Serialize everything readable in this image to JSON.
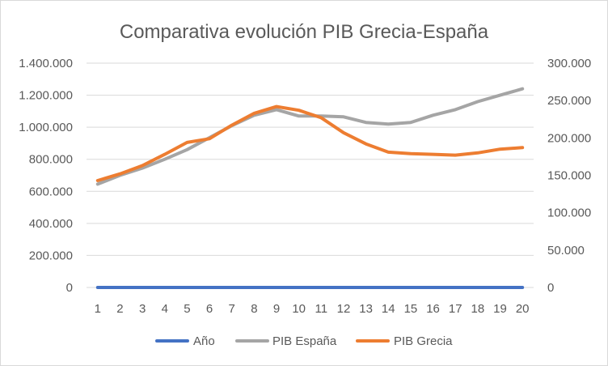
{
  "chart_data": {
    "type": "line",
    "title": "Comparativa evolución PIB Grecia-España",
    "xlabel": "",
    "ylabel": "",
    "categories": [
      "1",
      "2",
      "3",
      "4",
      "5",
      "6",
      "7",
      "8",
      "9",
      "10",
      "11",
      "12",
      "13",
      "14",
      "15",
      "16",
      "17",
      "18",
      "19",
      "20"
    ],
    "y_left": {
      "ylim": [
        0,
        1400000
      ],
      "ticks": [
        "0",
        "200.000",
        "400.000",
        "600.000",
        "800.000",
        "1.000.000",
        "1.200.000",
        "1.400.000"
      ],
      "tick_values": [
        0,
        200000,
        400000,
        600000,
        800000,
        1000000,
        1200000,
        1400000
      ]
    },
    "y_right": {
      "ylim": [
        0,
        300000
      ],
      "ticks": [
        "0",
        "50.000",
        "100.000",
        "150.000",
        "200.000",
        "250.000",
        "300.000"
      ],
      "tick_values": [
        0,
        50000,
        100000,
        150000,
        200000,
        250000,
        300000
      ]
    },
    "grid": true,
    "legend_position": "bottom",
    "series": [
      {
        "name": "Año",
        "axis": "left",
        "color": "#4472C4",
        "values": [
          1,
          2,
          3,
          4,
          5,
          6,
          7,
          8,
          9,
          10,
          11,
          12,
          13,
          14,
          15,
          16,
          17,
          18,
          19,
          20
        ]
      },
      {
        "name": "PIB España",
        "axis": "left",
        "color": "#A5A5A5",
        "values": [
          645000,
          700000,
          745000,
          800000,
          860000,
          935000,
          1010000,
          1075000,
          1110000,
          1070000,
          1070000,
          1065000,
          1030000,
          1020000,
          1030000,
          1075000,
          1110000,
          1160000,
          1200000,
          1240000
        ]
      },
      {
        "name": "PIB Grecia",
        "axis": "right",
        "color": "#ED7D31",
        "values": [
          143000,
          152000,
          163000,
          178000,
          194000,
          199000,
          217000,
          233000,
          242000,
          237000,
          227000,
          207000,
          192000,
          181000,
          179000,
          178000,
          177000,
          180000,
          185000,
          187000
        ]
      }
    ]
  }
}
